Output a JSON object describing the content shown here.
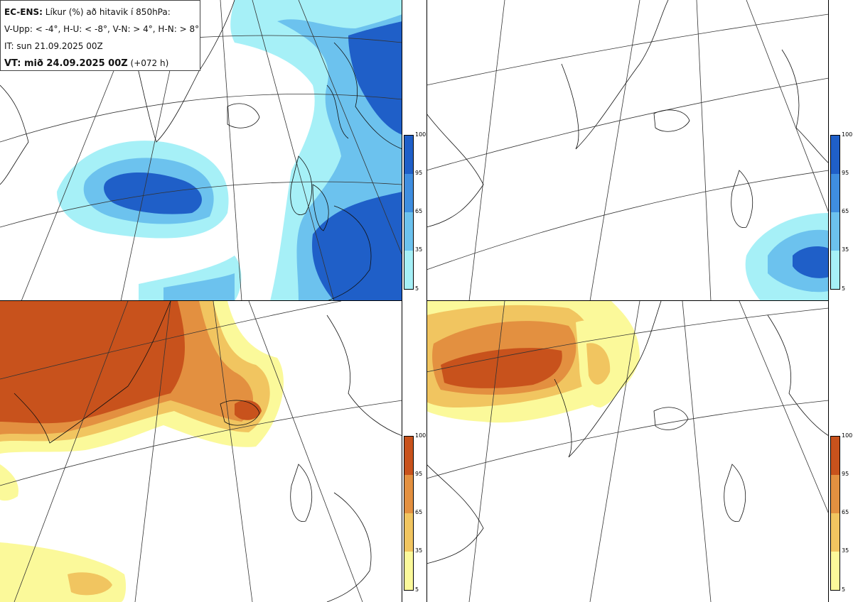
{
  "header": {
    "model_label": "EC-ENS:",
    "title_rest": "Líkur (%) að hitavik í 850hPa:",
    "thresholds": "V-Upp: < -4°, H-U: < -8°, V-N: > 4°, H-N: > 8°",
    "init_time": "IT: sun 21.09.2025 00Z",
    "valid_label": "VT: mið 24.09.2025 00Z",
    "valid_offset": "(+072 h)"
  },
  "panels": [
    {
      "id": "V-Upp",
      "scheme": "blue"
    },
    {
      "id": "H-U",
      "scheme": "blue"
    },
    {
      "id": "V-N",
      "scheme": "orange"
    },
    {
      "id": "H-N",
      "scheme": "orange"
    }
  ],
  "colorbar": {
    "levels": [
      "100",
      "95",
      "65",
      "35",
      "5"
    ],
    "blue_colors": [
      "#1f5fc8",
      "#3f8ee0",
      "#6cc2ee",
      "#a6f0f7"
    ],
    "orange_colors": [
      "#c8521c",
      "#e39040",
      "#f1c560",
      "#fbf99a"
    ]
  }
}
